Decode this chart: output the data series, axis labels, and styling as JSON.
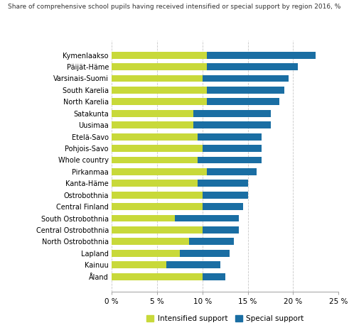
{
  "regions": [
    "Kymenlaakso",
    "Päijät-Häme",
    "Varsinais-Suomi",
    "South Karelia",
    "North Karelia",
    "Satakunta",
    "Uusimaa",
    "Etelä-Savo",
    "Pohjois-Savo",
    "Whole country",
    "Pirkanmaa",
    "Kanta-Häme",
    "Ostrobothnia",
    "Central Finland",
    "South Ostrobothnia",
    "Central Ostrobothnia",
    "North Ostrobothnia",
    "Lapland",
    "Kainuu",
    "Åland"
  ],
  "intensified": [
    10.5,
    10.5,
    10.0,
    10.5,
    10.5,
    9.0,
    9.0,
    9.5,
    10.0,
    9.5,
    10.5,
    9.5,
    10.0,
    10.0,
    7.0,
    10.0,
    8.5,
    7.5,
    6.0,
    10.0
  ],
  "special": [
    12.0,
    10.0,
    9.5,
    8.5,
    8.0,
    8.5,
    8.5,
    7.0,
    6.5,
    7.0,
    5.5,
    5.5,
    5.0,
    4.5,
    7.0,
    4.0,
    5.0,
    5.5,
    6.0,
    2.5
  ],
  "intensified_color": "#c8d93a",
  "special_color": "#1a6ea3",
  "background_color": "#ffffff",
  "title": "Share of comprehensive school pupils having received intensified or special support by region 2016, %",
  "xlabel_ticks": [
    0,
    5,
    10,
    15,
    20,
    25
  ],
  "xlabel_labels": [
    "0 %",
    "5 %",
    "10 %",
    "15 %",
    "20 %",
    "25 %"
  ],
  "legend_intensified": "Intensified support",
  "legend_special": "Special support",
  "grid_color": "#c8c8c8"
}
